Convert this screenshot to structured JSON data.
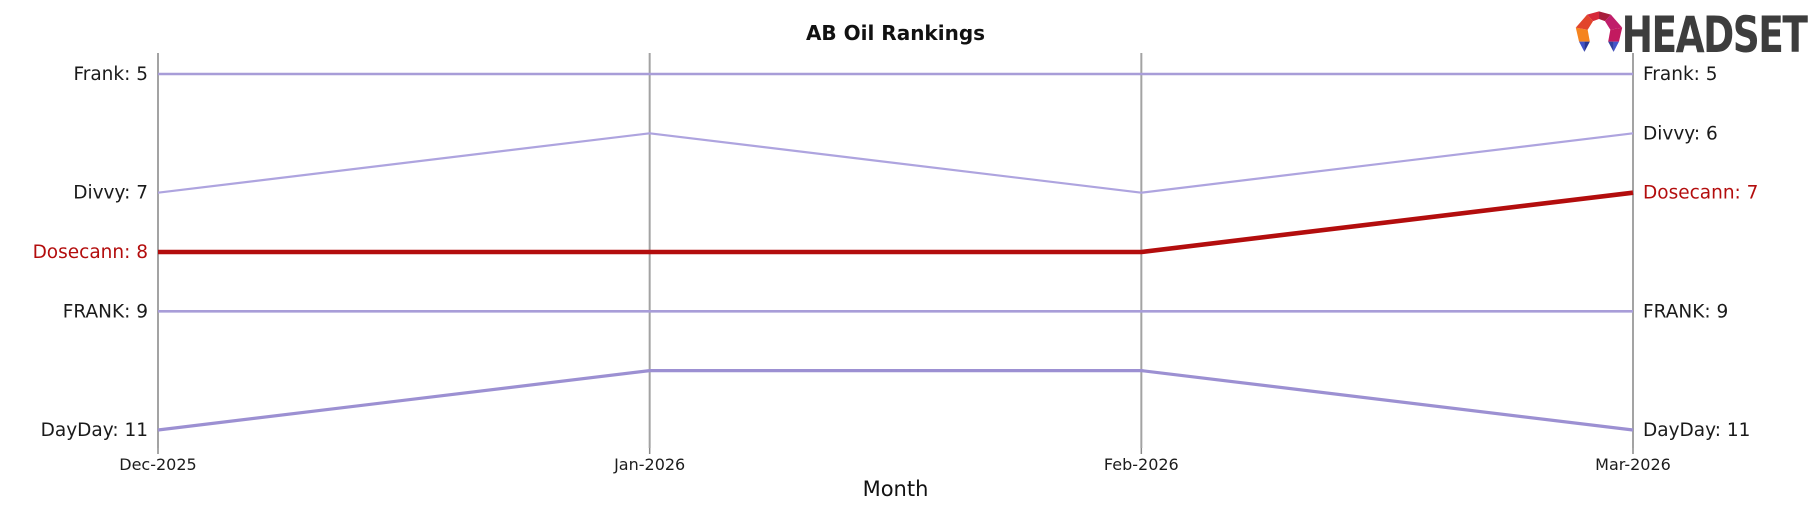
{
  "page": {
    "background": "#ffffff"
  },
  "logo": {
    "text": "HEADSET",
    "text_color": "#3d3d3d",
    "mark_colors": [
      "#f5841f",
      "#e2442b",
      "#d62839",
      "#a81e3c",
      "#c01e6b",
      "#c21a5f",
      "#4052c8",
      "#283593",
      "#303f9f",
      "#4455cc"
    ]
  },
  "chart_data": {
    "type": "line",
    "title": "AB Oil Rankings",
    "xlabel": "Month",
    "categories": [
      "Dec-2025",
      "Jan-2026",
      "Feb-2026",
      "Mar-2026"
    ],
    "y_axis": {
      "metric": "rank",
      "inverted": true,
      "best_rank_shown": 5,
      "worst_rank_shown": 11,
      "axis_line": "none-horizontal"
    },
    "grid": "vertical-only",
    "gridline_color": "#a3a3a3",
    "tick_color": "#8a8a8a",
    "tick_label_color": "#1c1c1c",
    "label_text_color": "#1a1a1a",
    "highlight_color": "#b30d0d",
    "legend_position": "inline-edge-labels",
    "series": [
      {
        "name": "Frank",
        "values": [
          5,
          5,
          5,
          5
        ],
        "label_left": "Frank: 5",
        "label_right": "Frank: 5",
        "color": "#a89dd8",
        "width": 2.6,
        "label_color": "#1a1a1a",
        "highlighted": false
      },
      {
        "name": "Divvy",
        "values": [
          7,
          6,
          7,
          6
        ],
        "label_left": "Divvy: 7",
        "label_right": "Divvy: 6",
        "color": "#aea4df",
        "width": 2.2,
        "label_color": "#1a1a1a",
        "highlighted": false
      },
      {
        "name": "Dosecann",
        "values": [
          8,
          8,
          8,
          7
        ],
        "label_left": "Dosecann: 8",
        "label_right": "Dosecann: 7",
        "color": "#b30d0d",
        "width": 4.6,
        "label_color": "#b30d0d",
        "highlighted": true
      },
      {
        "name": "FRANK",
        "values": [
          9,
          9,
          9,
          9
        ],
        "label_left": "FRANK: 9",
        "label_right": "FRANK: 9",
        "color": "#a89dd8",
        "width": 2.6,
        "label_color": "#1a1a1a",
        "highlighted": false
      },
      {
        "name": "DayDay",
        "values": [
          11,
          10,
          10,
          11
        ],
        "label_left": "DayDay: 11",
        "label_right": "DayDay: 11",
        "color": "#9c90d2",
        "width": 3.2,
        "label_color": "#1a1a1a",
        "highlighted": false
      }
    ]
  }
}
